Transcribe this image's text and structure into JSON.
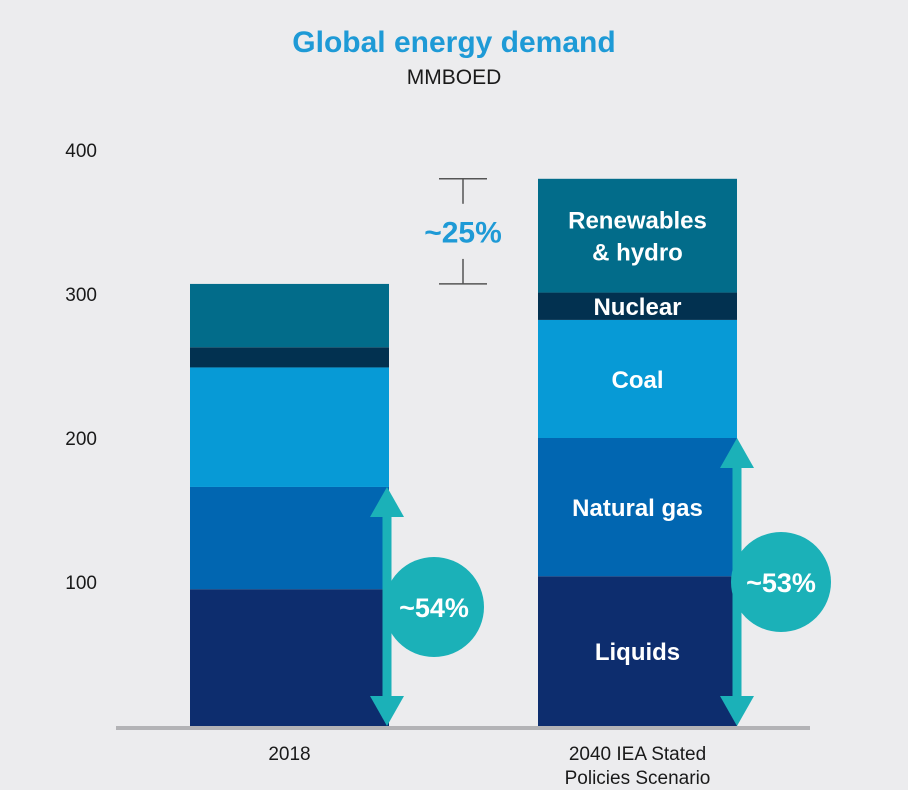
{
  "chart_data": {
    "type": "bar",
    "stacked": true,
    "title": "Global energy demand",
    "subtitle": "MMBOED",
    "categories": [
      "2018",
      "2040 IEA Stated\nPolicies Scenario"
    ],
    "ylim": [
      0,
      400
    ],
    "yticks": [
      100,
      200,
      300,
      400
    ],
    "series": [
      {
        "name": "Liquids",
        "values": [
          95,
          104
        ],
        "color": "#0d2d6e"
      },
      {
        "name": "Natural gas",
        "values": [
          71,
          96
        ],
        "color": "#0166b1"
      },
      {
        "name": "Coal",
        "values": [
          83,
          82
        ],
        "color": "#079ad6"
      },
      {
        "name": "Nuclear",
        "values": [
          14,
          19
        ],
        "color": "#023150"
      },
      {
        "name": "Renewables\n& hydro",
        "values": [
          44,
          79
        ],
        "color": "#026c8a"
      }
    ],
    "segment_labels_on_category": 1,
    "annotations": {
      "share_2018": "~54%",
      "share_2040": "~53%",
      "growth": "~25%",
      "accent_color": "#1bb1b8",
      "growth_color": "#1e9ad6"
    }
  }
}
